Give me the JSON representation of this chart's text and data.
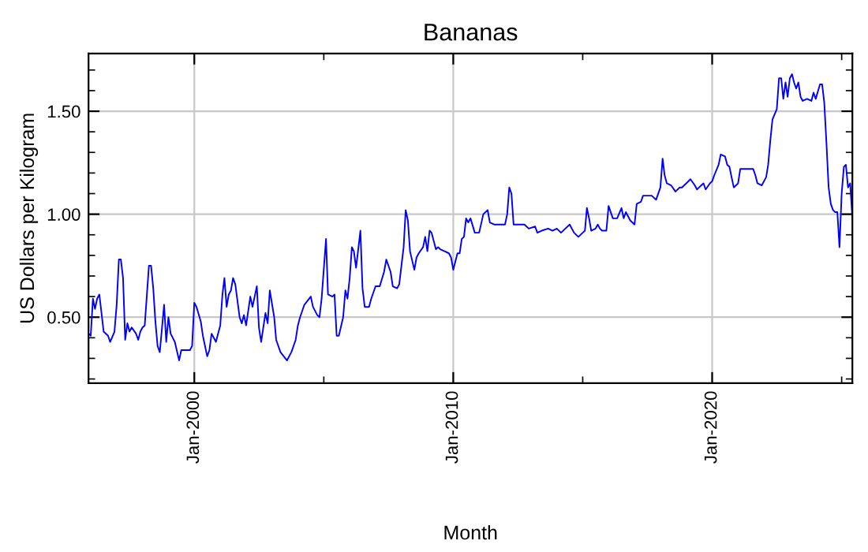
{
  "chart_data": {
    "type": "line",
    "title": "Bananas",
    "xlabel": "Month",
    "ylabel": "US Dollars per Kilogram",
    "xlim": [
      "1995-12",
      "2025-06"
    ],
    "ylim": [
      0.18,
      1.78
    ],
    "xticks": [
      {
        "value": "2000-01",
        "label": "Jan-2000"
      },
      {
        "value": "2005-01",
        "label": null
      },
      {
        "value": "2010-01",
        "label": "Jan-2010"
      },
      {
        "value": "2015-01",
        "label": null
      },
      {
        "value": "2020-01",
        "label": "Jan-2020"
      },
      {
        "value": "2025-01",
        "label": null
      }
    ],
    "yticks": [
      {
        "value": 0.2,
        "label": null
      },
      {
        "value": 0.3,
        "label": null
      },
      {
        "value": 0.4,
        "label": null
      },
      {
        "value": 0.5,
        "label": "0.50"
      },
      {
        "value": 0.6,
        "label": null
      },
      {
        "value": 0.7,
        "label": null
      },
      {
        "value": 0.8,
        "label": null
      },
      {
        "value": 0.9,
        "label": null
      },
      {
        "value": 1.0,
        "label": "1.00"
      },
      {
        "value": 1.1,
        "label": null
      },
      {
        "value": 1.2,
        "label": null
      },
      {
        "value": 1.3,
        "label": null
      },
      {
        "value": 1.4,
        "label": null
      },
      {
        "value": 1.5,
        "label": "1.50"
      },
      {
        "value": 1.6,
        "label": null
      },
      {
        "value": 1.7,
        "label": null
      }
    ],
    "grid": true,
    "marker": "none",
    "line_style": "solid",
    "series": [
      {
        "color": "#0000ff",
        "x": [
          "1995-12",
          "1996-01",
          "1996-02",
          "1996-03",
          "1996-04",
          "1996-05",
          "1996-06",
          "1996-07",
          "1996-09",
          "1996-10",
          "1996-12",
          "1997-01",
          "1997-02",
          "1997-03",
          "1997-04",
          "1997-05",
          "1997-06",
          "1997-07",
          "1997-08",
          "1997-10",
          "1997-11",
          "1997-12",
          "1998-01",
          "1998-02",
          "1998-04",
          "1998-05",
          "1998-06",
          "1998-07",
          "1998-08",
          "1998-09",
          "1998-11",
          "1998-12",
          "1999-01",
          "1999-02",
          "1999-04",
          "1999-06",
          "1999-07",
          "1999-09",
          "1999-11",
          "1999-12",
          "2000-01",
          "2000-02",
          "2000-04",
          "2000-05",
          "2000-07",
          "2000-08",
          "2000-09",
          "2000-11",
          "2001-01",
          "2001-02",
          "2001-03",
          "2001-04",
          "2001-05",
          "2001-06",
          "2001-07",
          "2001-08",
          "2001-10",
          "2001-11",
          "2001-12",
          "2002-01",
          "2002-03",
          "2002-04",
          "2002-06",
          "2002-07",
          "2002-08",
          "2002-10",
          "2002-11",
          "2002-12",
          "2003-02",
          "2003-03",
          "2003-05",
          "2003-08",
          "2003-10",
          "2003-12",
          "2004-01",
          "2004-02",
          "2004-04",
          "2004-07",
          "2004-08",
          "2004-10",
          "2004-11",
          "2004-12",
          "2005-02",
          "2005-03",
          "2005-05",
          "2005-06",
          "2005-07",
          "2005-08",
          "2005-10",
          "2005-11",
          "2005-12",
          "2006-01",
          "2006-02",
          "2006-03",
          "2006-04",
          "2006-06",
          "2006-07",
          "2006-08",
          "2006-10",
          "2006-11",
          "2007-01",
          "2007-03",
          "2007-05",
          "2007-06",
          "2007-08",
          "2007-09",
          "2007-11",
          "2007-12",
          "2008-02",
          "2008-03",
          "2008-04",
          "2008-05",
          "2008-07",
          "2008-08",
          "2008-09",
          "2008-11",
          "2008-12",
          "2009-01",
          "2009-02",
          "2009-03",
          "2009-05",
          "2009-06",
          "2009-07",
          "2009-09",
          "2009-11",
          "2009-12",
          "2010-01",
          "2010-03",
          "2010-04",
          "2010-05",
          "2010-06",
          "2010-07",
          "2010-08",
          "2010-09",
          "2010-11",
          "2011-01",
          "2011-03",
          "2011-05",
          "2011-06",
          "2011-08",
          "2011-11",
          "2012-01",
          "2012-02",
          "2012-03",
          "2012-04",
          "2012-05",
          "2012-07",
          "2012-10",
          "2012-12",
          "2013-03",
          "2013-04",
          "2013-06",
          "2013-09",
          "2013-11",
          "2014-01",
          "2014-03",
          "2014-05",
          "2014-07",
          "2014-09",
          "2014-11",
          "2015-01",
          "2015-02",
          "2015-03",
          "2015-04",
          "2015-05",
          "2015-07",
          "2015-08",
          "2015-09",
          "2015-10",
          "2015-12",
          "2016-01",
          "2016-03",
          "2016-05",
          "2016-07",
          "2016-08",
          "2016-09",
          "2016-11",
          "2017-01",
          "2017-02",
          "2017-04",
          "2017-05",
          "2017-07",
          "2017-09",
          "2017-11",
          "2018-01",
          "2018-02",
          "2018-03",
          "2018-04",
          "2018-06",
          "2018-08",
          "2018-10",
          "2018-11",
          "2019-01",
          "2019-03",
          "2019-05",
          "2019-06",
          "2019-07",
          "2019-08",
          "2019-09",
          "2019-10",
          "2019-12",
          "2020-01",
          "2020-02",
          "2020-04",
          "2020-05",
          "2020-07",
          "2020-08",
          "2020-09",
          "2020-10",
          "2020-11",
          "2021-01",
          "2021-02",
          "2021-04",
          "2021-08",
          "2021-09",
          "2021-10",
          "2021-12",
          "2022-02",
          "2022-03",
          "2022-04",
          "2022-05",
          "2022-07",
          "2022-08",
          "2022-09",
          "2022-10",
          "2022-11",
          "2022-12",
          "2023-01",
          "2023-02",
          "2023-03",
          "2023-04",
          "2023-05",
          "2023-06",
          "2023-07",
          "2023-09",
          "2023-11",
          "2023-12",
          "2024-01",
          "2024-03",
          "2024-04",
          "2024-05",
          "2024-06",
          "2024-07",
          "2024-08",
          "2024-09",
          "2024-10",
          "2024-11",
          "2024-12",
          "2025-01",
          "2025-02",
          "2025-03",
          "2025-04",
          "2025-05",
          "2025-06"
        ],
        "values": [
          0.42,
          0.41,
          0.59,
          0.54,
          0.59,
          0.61,
          0.52,
          0.43,
          0.41,
          0.38,
          0.43,
          0.56,
          0.78,
          0.78,
          0.69,
          0.39,
          0.47,
          0.43,
          0.45,
          0.42,
          0.39,
          0.43,
          0.45,
          0.46,
          0.75,
          0.75,
          0.64,
          0.48,
          0.36,
          0.33,
          0.56,
          0.38,
          0.5,
          0.42,
          0.38,
          0.29,
          0.34,
          0.34,
          0.34,
          0.36,
          0.57,
          0.55,
          0.48,
          0.41,
          0.31,
          0.34,
          0.42,
          0.38,
          0.46,
          0.61,
          0.69,
          0.55,
          0.61,
          0.63,
          0.69,
          0.66,
          0.5,
          0.47,
          0.51,
          0.46,
          0.6,
          0.55,
          0.65,
          0.45,
          0.38,
          0.52,
          0.47,
          0.63,
          0.5,
          0.39,
          0.33,
          0.29,
          0.33,
          0.39,
          0.46,
          0.5,
          0.56,
          0.6,
          0.55,
          0.51,
          0.5,
          0.59,
          0.88,
          0.61,
          0.6,
          0.61,
          0.41,
          0.41,
          0.5,
          0.63,
          0.59,
          0.69,
          0.84,
          0.82,
          0.74,
          0.92,
          0.64,
          0.55,
          0.55,
          0.59,
          0.65,
          0.65,
          0.72,
          0.78,
          0.72,
          0.65,
          0.64,
          0.66,
          0.84,
          1.02,
          0.97,
          0.82,
          0.73,
          0.79,
          0.81,
          0.84,
          0.89,
          0.82,
          0.92,
          0.91,
          0.83,
          0.84,
          0.83,
          0.82,
          0.81,
          0.79,
          0.73,
          0.81,
          0.81,
          0.88,
          0.89,
          0.98,
          0.96,
          0.98,
          0.91,
          0.91,
          1.0,
          1.02,
          0.96,
          0.95,
          0.95,
          0.95,
          1.0,
          1.13,
          1.1,
          0.95,
          0.95,
          0.95,
          0.93,
          0.94,
          0.91,
          0.92,
          0.93,
          0.92,
          0.93,
          0.91,
          0.93,
          0.95,
          0.91,
          0.89,
          0.91,
          0.92,
          1.03,
          0.98,
          0.92,
          0.93,
          0.95,
          0.93,
          0.92,
          0.92,
          1.04,
          0.98,
          0.98,
          1.03,
          0.98,
          1.01,
          0.97,
          0.95,
          1.05,
          1.06,
          1.09,
          1.09,
          1.09,
          1.07,
          1.13,
          1.27,
          1.19,
          1.15,
          1.14,
          1.11,
          1.13,
          1.13,
          1.15,
          1.17,
          1.14,
          1.12,
          1.13,
          1.14,
          1.15,
          1.12,
          1.15,
          1.16,
          1.19,
          1.24,
          1.29,
          1.28,
          1.24,
          1.23,
          1.18,
          1.13,
          1.15,
          1.22,
          1.22,
          1.22,
          1.19,
          1.15,
          1.14,
          1.18,
          1.24,
          1.36,
          1.46,
          1.51,
          1.66,
          1.66,
          1.56,
          1.64,
          1.57,
          1.66,
          1.68,
          1.64,
          1.61,
          1.64,
          1.57,
          1.55,
          1.56,
          1.55,
          1.59,
          1.56,
          1.63,
          1.63,
          1.54,
          1.34,
          1.13,
          1.05,
          1.02,
          1.01,
          1.01,
          0.84,
          1.1,
          1.23,
          1.24,
          1.13,
          1.15,
          0.98
        ]
      }
    ]
  }
}
